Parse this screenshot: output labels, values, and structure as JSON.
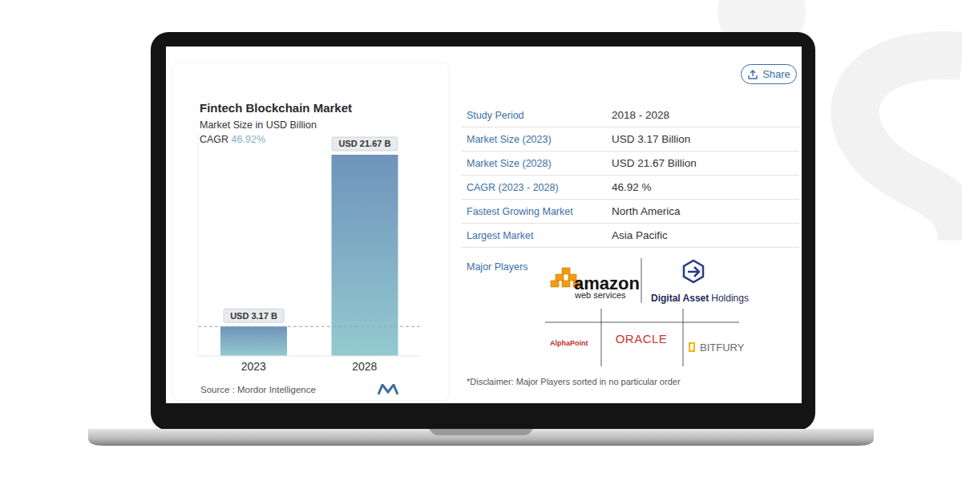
{
  "chart_data": {
    "type": "bar",
    "title": "Fintech Blockchain Market",
    "subtitle": "Market Size in USD Billion",
    "annotations": [
      "CAGR",
      "46.92%",
      "Source : Mordor Intelligence"
    ],
    "categories": [
      "2023",
      "2028"
    ],
    "values": [
      3.17,
      21.67
    ],
    "value_labels": [
      "USD 3.17 B",
      "USD 21.67 B"
    ],
    "data_labels": true,
    "color": "#6f93bb",
    "ylim": [
      0,
      24
    ],
    "tick_labels": "x",
    "grid": false
  },
  "panel": {
    "share": "Share",
    "rows": [
      [
        "Study Period",
        "2018 - 2028"
      ],
      [
        "Market Size (2023)",
        "USD 3.17 Billion"
      ],
      [
        "Market Size (2028)",
        "USD 21.67 Billion"
      ],
      [
        "CAGR (2023 - 2028)",
        "46.92 %"
      ],
      [
        "Fastest Growing Market",
        "North America"
      ],
      [
        "Largest Market",
        "Asia Pacific"
      ]
    ],
    "players_label": "Major Players",
    "players": [
      {
        "name": "amazon",
        "sub": "web services"
      },
      {
        "name": "Digital Asset",
        "sub": "Holdings"
      },
      {
        "name": "AlphaPoint"
      },
      {
        "name": "ORACLE"
      },
      {
        "name": "BITFURY"
      }
    ],
    "disclaimer": "*Disclaimer: Major Players sorted in no particular order"
  }
}
